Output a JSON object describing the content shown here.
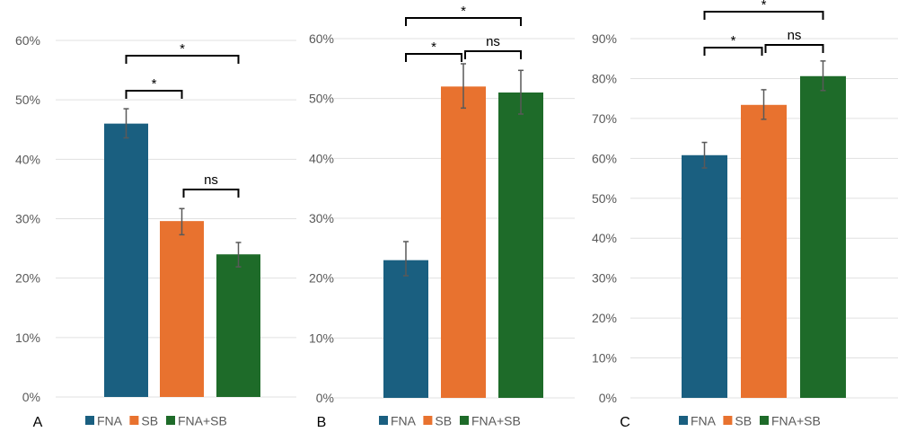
{
  "colors": {
    "FNA": "#1a5f80",
    "SB": "#e8722f",
    "FNA+SB": "#1e6b29",
    "grid": "#e0e0e0",
    "error_bar": "#595959"
  },
  "chart_data": [
    {
      "type": "bar",
      "panel_label": "A",
      "categories": [
        "FNA",
        "SB",
        "FNA+SB"
      ],
      "values": [
        46.0,
        29.6,
        24.0
      ],
      "error_upper": [
        48.5,
        31.7,
        26.0
      ],
      "error_lower": [
        43.6,
        27.3,
        21.9
      ],
      "unit": "%",
      "ylim": [
        0,
        60
      ],
      "yticks": [
        "0%",
        "10%",
        "20%",
        "30%",
        "40%",
        "50%",
        "60%"
      ],
      "grid": true,
      "legend": [
        "FNA",
        "SB",
        "FNA+SB"
      ],
      "legend_position": "bottom",
      "significance": [
        {
          "from": "FNA",
          "to": "SB",
          "label": "*"
        },
        {
          "from": "FNA",
          "to": "FNA+SB",
          "label": "*"
        },
        {
          "from": "SB",
          "to": "FNA+SB",
          "label": "ns"
        }
      ]
    },
    {
      "type": "bar",
      "panel_label": "B",
      "categories": [
        "FNA",
        "SB",
        "FNA+SB"
      ],
      "values": [
        23.0,
        52.0,
        51.0
      ],
      "error_upper": [
        26.1,
        55.8,
        54.7
      ],
      "error_lower": [
        20.4,
        48.4,
        47.4
      ],
      "unit": "%",
      "ylim": [
        0,
        60
      ],
      "yticks": [
        "0%",
        "10%",
        "20%",
        "30%",
        "40%",
        "50%",
        "60%"
      ],
      "grid": true,
      "legend": [
        "FNA",
        "SB",
        "FNA+SB"
      ],
      "legend_position": "bottom",
      "significance": [
        {
          "from": "FNA",
          "to": "SB",
          "label": "*"
        },
        {
          "from": "FNA",
          "to": "FNA+SB",
          "label": "*"
        },
        {
          "from": "SB",
          "to": "FNA+SB",
          "label": "ns"
        }
      ]
    },
    {
      "type": "bar",
      "panel_label": "C",
      "categories": [
        "FNA",
        "SB",
        "FNA+SB"
      ],
      "values": [
        60.8,
        73.4,
        80.6
      ],
      "error_upper": [
        64.0,
        77.2,
        84.4
      ],
      "error_lower": [
        57.6,
        69.8,
        77.0
      ],
      "unit": "%",
      "ylim": [
        0,
        90
      ],
      "yticks": [
        "0%",
        "10%",
        "20%",
        "30%",
        "40%",
        "50%",
        "60%",
        "70%",
        "80%",
        "90%"
      ],
      "grid": true,
      "legend": [
        "FNA",
        "SB",
        "FNA+SB"
      ],
      "legend_position": "bottom",
      "significance": [
        {
          "from": "FNA",
          "to": "SB",
          "label": "*"
        },
        {
          "from": "FNA",
          "to": "FNA+SB",
          "label": "*"
        },
        {
          "from": "SB",
          "to": "FNA+SB",
          "label": "ns"
        }
      ]
    }
  ]
}
